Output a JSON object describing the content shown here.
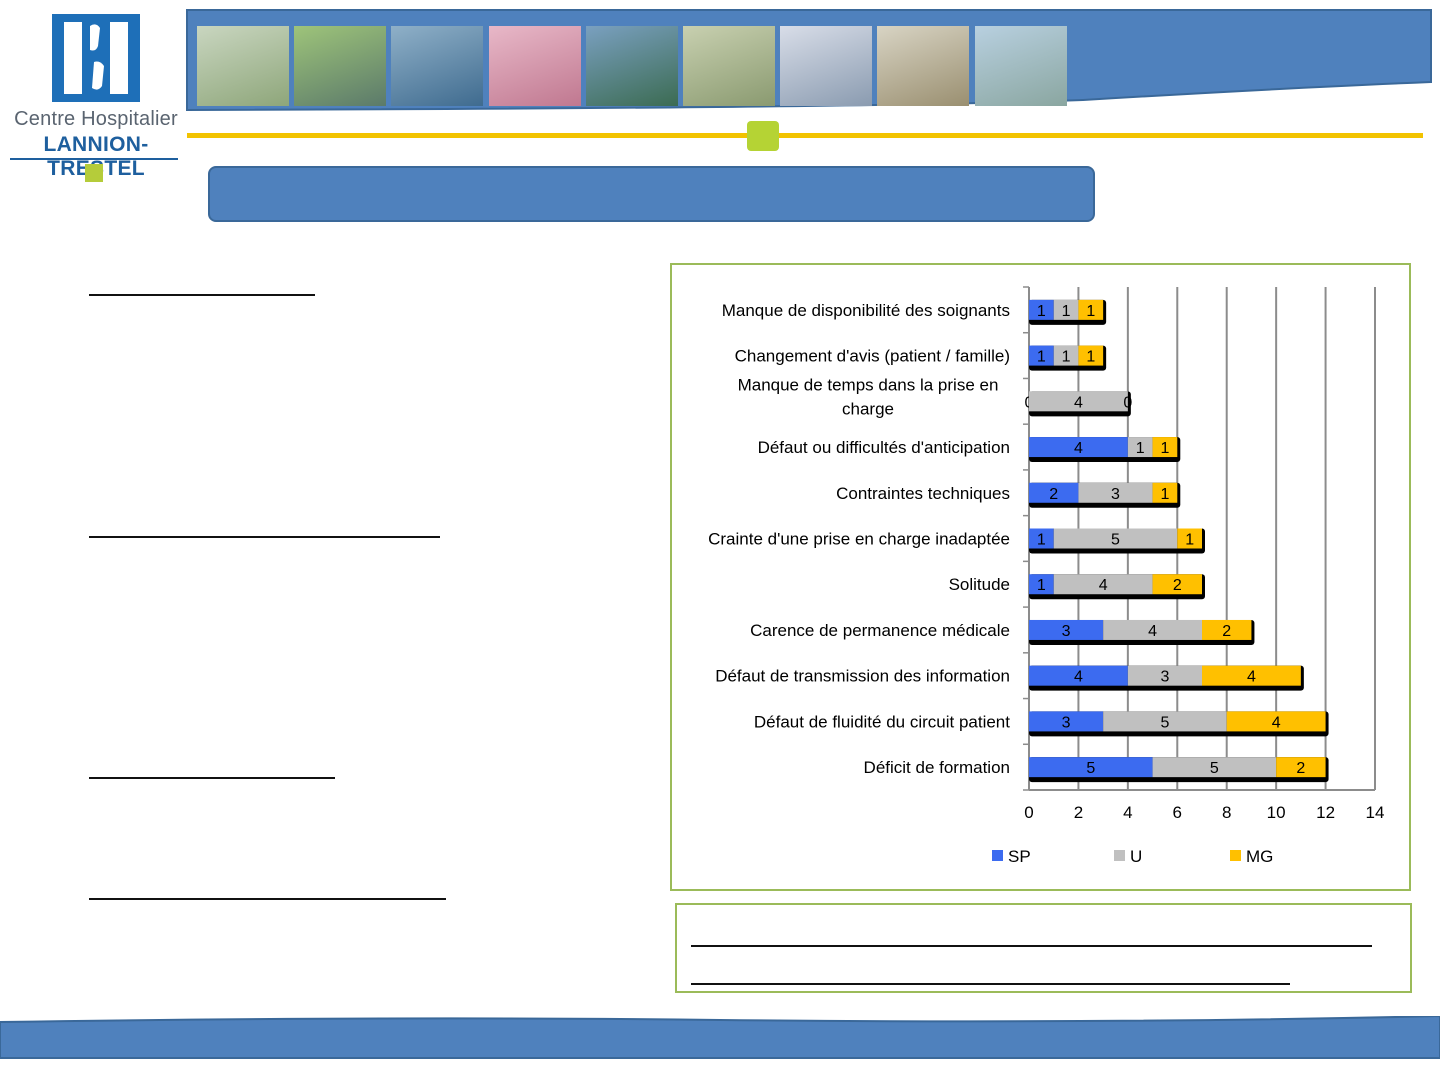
{
  "logo": {
    "line1": "Centre Hospitalier",
    "line2": "LANNION-TRESTEL",
    "icon": "hospital-hands-icon"
  },
  "banner": {
    "photos": [
      "hospital-building",
      "office-staff",
      "surgery",
      "newborn",
      "boat",
      "hallway",
      "care-staff",
      "kitchen",
      "coastline"
    ]
  },
  "colors": {
    "brand_blue": "#4f81bd",
    "accent_gold": "#f2c300",
    "accent_green": "#b5d334",
    "frame_green": "#9bbb59",
    "series_sp": "#3c6bf0",
    "series_u": "#c0c0c0",
    "series_mg": "#ffc000"
  },
  "chart_data": {
    "type": "bar",
    "orientation": "horizontal",
    "stacked": true,
    "categories": [
      "Manque de disponibilité des soignants",
      "Changement d'avis (patient / famille)",
      "Manque de temps dans la prise en charge",
      "Défaut ou difficultés d'anticipation",
      "Contraintes techniques",
      "Crainte d'une prise en charge inadaptée",
      "Solitude",
      "Carence de permanence médicale",
      "Défaut de transmission des information",
      "Défaut de fluidité du circuit patient",
      "Déficit de formation"
    ],
    "category_lines": [
      [
        "Manque de disponibilité des soignants"
      ],
      [
        "Changement d'avis (patient / famille)"
      ],
      [
        "Manque de temps dans la prise en",
        "charge"
      ],
      [
        "Défaut ou difficultés d'anticipation"
      ],
      [
        "Contraintes techniques"
      ],
      [
        "Crainte d'une prise en charge inadaptée"
      ],
      [
        "Solitude"
      ],
      [
        "Carence de permanence médicale"
      ],
      [
        "Défaut de transmission des information"
      ],
      [
        "Défaut de fluidité du circuit patient"
      ],
      [
        "Déficit de formation"
      ]
    ],
    "series": [
      {
        "name": "SP",
        "values": [
          1,
          1,
          0,
          4,
          2,
          1,
          1,
          3,
          4,
          3,
          5
        ]
      },
      {
        "name": "U",
        "values": [
          1,
          1,
          4,
          1,
          3,
          5,
          4,
          4,
          3,
          5,
          5
        ]
      },
      {
        "name": "MG",
        "values": [
          1,
          1,
          0,
          1,
          1,
          1,
          2,
          2,
          4,
          4,
          2
        ]
      }
    ],
    "xlim": [
      0,
      14
    ],
    "xticks": [
      "0",
      "2",
      "4",
      "6",
      "8",
      "10",
      "12",
      "14"
    ],
    "grid": "vertical",
    "legend": "bottom",
    "data_labels": true
  }
}
